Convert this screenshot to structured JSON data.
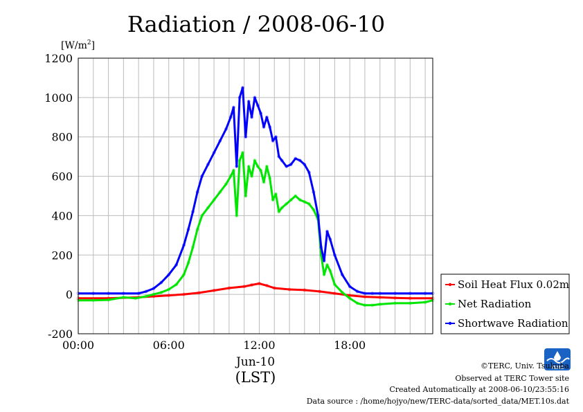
{
  "chart_data": {
    "type": "line",
    "title": "Radiation / 2008-06-10",
    "ylabel": "[W/m2]",
    "ylabel_base": "[W/m",
    "ylabel_sup": "2",
    "ylabel_end": "]",
    "xlabel_date": "Jun-10",
    "xlabel_unit": "(LST)",
    "ylim": [
      -200,
      1200
    ],
    "xlim": [
      0,
      23.5
    ],
    "y_ticks": [
      -200,
      0,
      200,
      400,
      600,
      800,
      1000,
      1200
    ],
    "x_ticks": [
      0,
      6,
      12,
      18
    ],
    "x_tick_labels": [
      "00:00",
      "06:00",
      "12:00",
      "18:00"
    ],
    "grid": true,
    "legend_position": "right",
    "series": [
      {
        "name": "Soil Heat Flux 0.02m",
        "color": "#ff0000",
        "x": [
          0,
          2,
          4,
          5,
          6,
          7,
          8,
          9,
          10,
          11,
          11.5,
          12,
          12.5,
          13,
          14,
          15,
          16,
          17,
          18,
          19,
          20,
          21,
          22,
          23.5
        ],
        "y": [
          -20,
          -20,
          -15,
          -10,
          -5,
          0,
          8,
          20,
          32,
          40,
          48,
          55,
          45,
          32,
          25,
          22,
          15,
          5,
          -5,
          -12,
          -15,
          -18,
          -20,
          -20
        ]
      },
      {
        "name": "Net Radiation",
        "color": "#00e600",
        "x": [
          0,
          1,
          2,
          3,
          3.8,
          4.5,
          5,
          5.5,
          6,
          6.5,
          7,
          7.3,
          7.6,
          7.9,
          8.2,
          8.6,
          9,
          9.4,
          9.8,
          10.1,
          10.3,
          10.5,
          10.7,
          10.9,
          11.1,
          11.3,
          11.5,
          11.7,
          11.9,
          12.1,
          12.3,
          12.5,
          12.7,
          12.9,
          13.1,
          13.3,
          13.5,
          13.8,
          14.1,
          14.4,
          14.7,
          15,
          15.3,
          15.6,
          15.9,
          16.1,
          16.3,
          16.5,
          16.7,
          17,
          17.5,
          18,
          18.5,
          19,
          19.5,
          20,
          21,
          22,
          23,
          23.5
        ],
        "y": [
          -30,
          -30,
          -28,
          -15,
          -20,
          -10,
          0,
          10,
          25,
          50,
          100,
          160,
          240,
          330,
          400,
          440,
          480,
          520,
          560,
          600,
          630,
          400,
          680,
          720,
          500,
          650,
          600,
          680,
          650,
          630,
          570,
          650,
          590,
          480,
          510,
          420,
          440,
          460,
          480,
          500,
          480,
          470,
          460,
          430,
          380,
          200,
          100,
          150,
          120,
          50,
          10,
          -20,
          -45,
          -55,
          -55,
          -50,
          -45,
          -45,
          -40,
          -30
        ]
      },
      {
        "name": "Shortwave Radiation",
        "color": "#0000ff",
        "x": [
          0,
          1,
          2,
          3,
          4,
          4.5,
          5,
          5.5,
          6,
          6.5,
          7,
          7.3,
          7.6,
          7.9,
          8.2,
          8.6,
          9,
          9.4,
          9.8,
          10.1,
          10.3,
          10.5,
          10.7,
          10.9,
          11.1,
          11.3,
          11.5,
          11.7,
          11.9,
          12.1,
          12.3,
          12.5,
          12.7,
          12.9,
          13.1,
          13.3,
          13.5,
          13.8,
          14.1,
          14.4,
          14.7,
          15,
          15.3,
          15.6,
          15.9,
          16.1,
          16.3,
          16.5,
          16.7,
          17,
          17.5,
          18,
          18.5,
          19,
          19.5,
          20,
          21,
          22,
          23,
          23.5
        ],
        "y": [
          5,
          5,
          5,
          5,
          5,
          15,
          30,
          60,
          100,
          150,
          250,
          330,
          420,
          520,
          600,
          660,
          720,
          780,
          840,
          900,
          950,
          650,
          1000,
          1050,
          800,
          980,
          900,
          1000,
          960,
          920,
          850,
          900,
          850,
          780,
          800,
          700,
          680,
          650,
          660,
          690,
          680,
          660,
          620,
          520,
          400,
          240,
          170,
          320,
          280,
          200,
          100,
          40,
          15,
          5,
          5,
          5,
          5,
          5,
          5,
          5
        ]
      }
    ]
  },
  "credits": {
    "copyright": "©TERC, Univ. Tsukuba",
    "observed": "Observed at TERC Tower site",
    "created": "Created Automatically at 2008-06-10/23:55:16",
    "source": "Data source : /home/hojyo/new/TERC-data/sorted_data/MET.10s.dat",
    "logo_text": "TERC"
  },
  "colors": {
    "logo_blue": "#1a62c4",
    "grid": "#bbbbbb"
  }
}
